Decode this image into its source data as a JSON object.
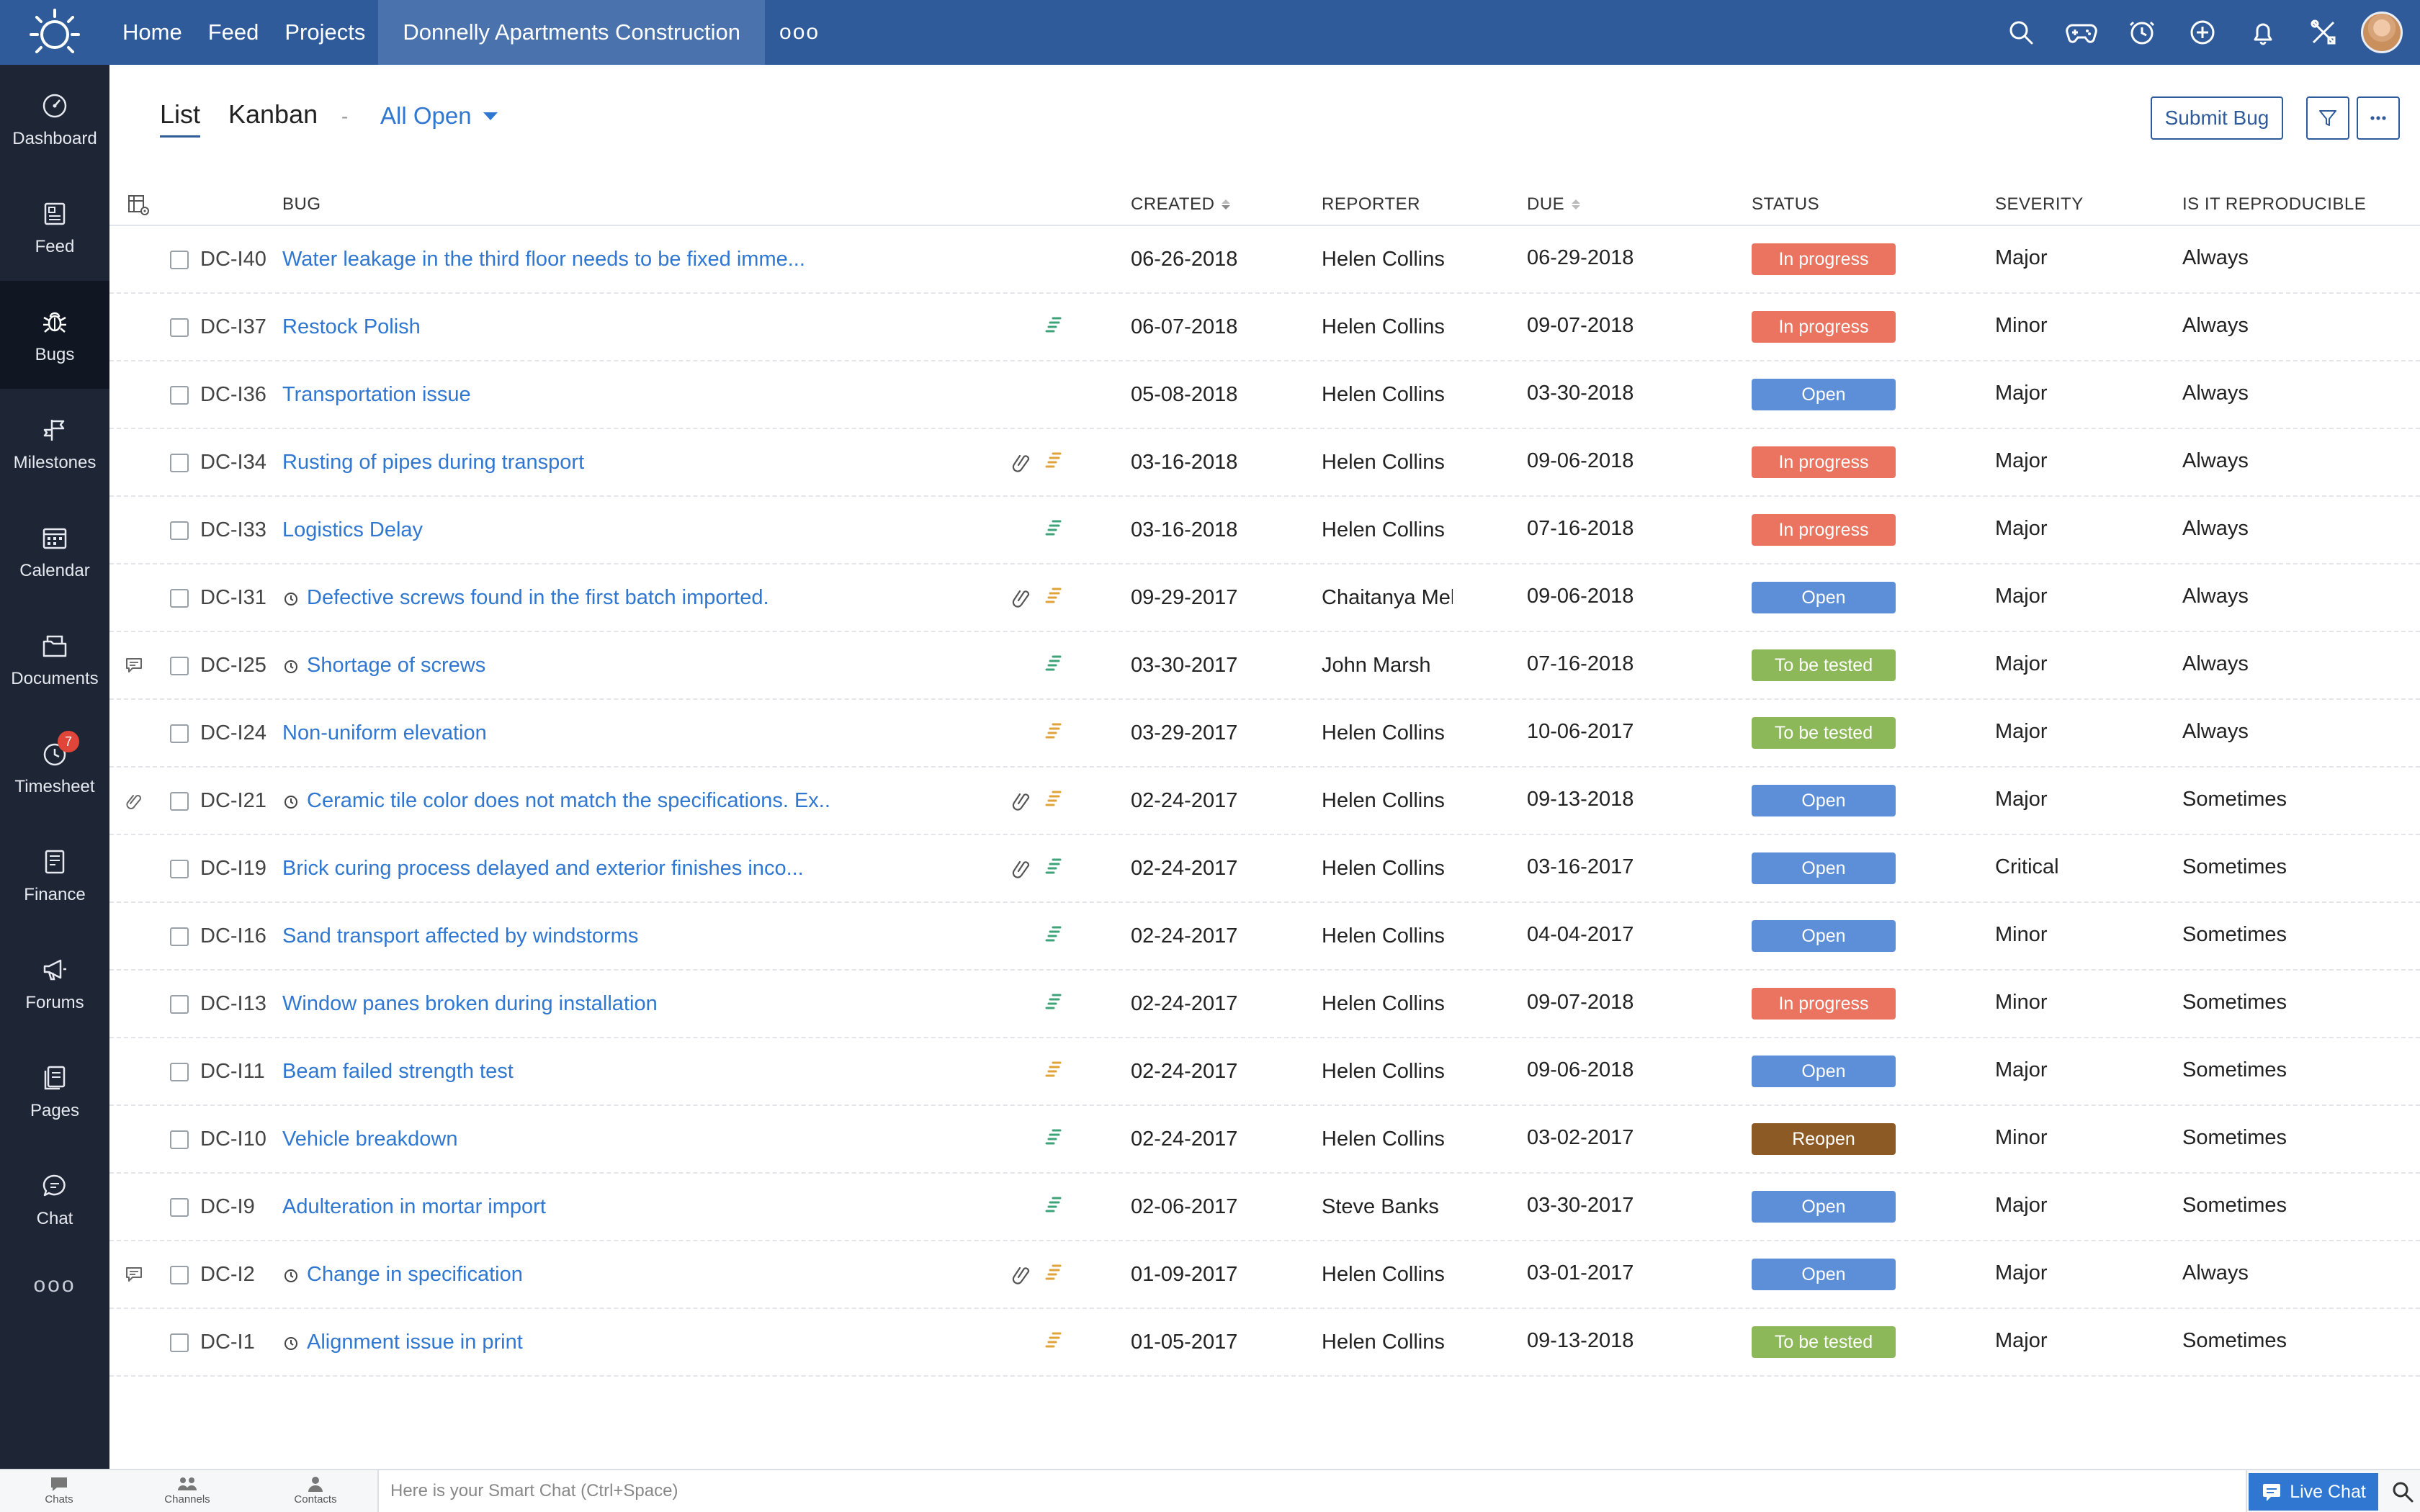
{
  "topbar": {
    "nav": [
      "Home",
      "Feed",
      "Projects"
    ],
    "project": "Donnelly Apartments Construction",
    "more": "ooo",
    "icons": [
      "search-icon",
      "gamepad-icon",
      "clock-icon",
      "plus-circle-icon",
      "bell-icon",
      "tools-icon"
    ]
  },
  "sidebar": {
    "items": [
      {
        "label": "Dashboard",
        "icon": "dashboard-icon"
      },
      {
        "label": "Feed",
        "icon": "feed-icon"
      },
      {
        "label": "Bugs",
        "icon": "bug-icon"
      },
      {
        "label": "Milestones",
        "icon": "milestone-icon"
      },
      {
        "label": "Calendar",
        "icon": "calendar-icon"
      },
      {
        "label": "Documents",
        "icon": "documents-icon"
      },
      {
        "label": "Timesheet",
        "icon": "timesheet-icon",
        "badge": "7"
      },
      {
        "label": "Finance",
        "icon": "finance-icon"
      },
      {
        "label": "Forums",
        "icon": "forums-icon"
      },
      {
        "label": "Pages",
        "icon": "pages-icon"
      },
      {
        "label": "Chat",
        "icon": "chat-icon"
      }
    ],
    "more": "ooo"
  },
  "view": {
    "tab_list": "List",
    "tab_kanban": "Kanban",
    "separator": "-",
    "filter": "All Open",
    "submit": "Submit Bug"
  },
  "table": {
    "headers": {
      "bug": "BUG",
      "created": "CREATED",
      "reporter": "REPORTER",
      "due": "DUE",
      "status": "STATUS",
      "severity": "SEVERITY",
      "reproducible": "IS IT REPRODUCIBLE"
    },
    "rows": [
      {
        "id": "DC-I40",
        "title": "Water leakage in the third floor needs to be fixed imme...",
        "clock": false,
        "link": false,
        "priority": "",
        "created": "06-26-2018",
        "reporter": "Helen Collins",
        "due": "06-29-2018",
        "status": "In progress",
        "severity": "Major",
        "reproducible": "Always",
        "left": ""
      },
      {
        "id": "DC-I37",
        "title": "Restock Polish",
        "clock": false,
        "link": false,
        "priority": "green",
        "created": "06-07-2018",
        "reporter": "Helen Collins",
        "due": "09-07-2018",
        "status": "In progress",
        "severity": "Minor",
        "reproducible": "Always",
        "left": ""
      },
      {
        "id": "DC-I36",
        "title": "Transportation issue",
        "clock": false,
        "link": false,
        "priority": "",
        "created": "05-08-2018",
        "reporter": "Helen Collins",
        "due": "03-30-2018",
        "status": "Open",
        "severity": "Major",
        "reproducible": "Always",
        "left": ""
      },
      {
        "id": "DC-I34",
        "title": "Rusting of pipes during transport",
        "clock": false,
        "link": true,
        "priority": "orange",
        "created": "03-16-2018",
        "reporter": "Helen Collins",
        "due": "09-06-2018",
        "status": "In progress",
        "severity": "Major",
        "reproducible": "Always",
        "left": ""
      },
      {
        "id": "DC-I33",
        "title": "Logistics Delay",
        "clock": false,
        "link": false,
        "priority": "green",
        "created": "03-16-2018",
        "reporter": "Helen Collins",
        "due": "07-16-2018",
        "status": "In progress",
        "severity": "Major",
        "reproducible": "Always",
        "left": ""
      },
      {
        "id": "DC-I31",
        "title": "Defective screws found in the first batch imported.",
        "clock": true,
        "link": true,
        "priority": "orange",
        "created": "09-29-2017",
        "reporter": "Chaitanya Mell",
        "due": "09-06-2018",
        "status": "Open",
        "severity": "Major",
        "reproducible": "Always",
        "left": ""
      },
      {
        "id": "DC-I25",
        "title": "Shortage of screws",
        "clock": true,
        "link": false,
        "priority": "green",
        "created": "03-30-2017",
        "reporter": "John Marsh",
        "due": "07-16-2018",
        "status": "To be tested",
        "severity": "Major",
        "reproducible": "Always",
        "left": "comment"
      },
      {
        "id": "DC-I24",
        "title": "Non-uniform elevation",
        "clock": false,
        "link": false,
        "priority": "orange",
        "created": "03-29-2017",
        "reporter": "Helen Collins",
        "due": "10-06-2017",
        "status": "To be tested",
        "severity": "Major",
        "reproducible": "Always",
        "left": ""
      },
      {
        "id": "DC-I21",
        "title": "Ceramic tile color does not match the specifications. Ex...",
        "clock": true,
        "link": true,
        "priority": "orange",
        "created": "02-24-2017",
        "reporter": "Helen Collins",
        "due": "09-13-2018",
        "status": "Open",
        "severity": "Major",
        "reproducible": "Sometimes",
        "left": "attachment"
      },
      {
        "id": "DC-I19",
        "title": "Brick curing process delayed and exterior finishes inco...",
        "clock": false,
        "link": true,
        "priority": "green",
        "created": "02-24-2017",
        "reporter": "Helen Collins",
        "due": "03-16-2017",
        "status": "Open",
        "severity": "Critical",
        "reproducible": "Sometimes",
        "left": ""
      },
      {
        "id": "DC-I16",
        "title": "Sand transport affected by windstorms",
        "clock": false,
        "link": false,
        "priority": "green",
        "created": "02-24-2017",
        "reporter": "Helen Collins",
        "due": "04-04-2017",
        "status": "Open",
        "severity": "Minor",
        "reproducible": "Sometimes",
        "left": ""
      },
      {
        "id": "DC-I13",
        "title": "Window panes broken during installation",
        "clock": false,
        "link": false,
        "priority": "green",
        "created": "02-24-2017",
        "reporter": "Helen Collins",
        "due": "09-07-2018",
        "status": "In progress",
        "severity": "Minor",
        "reproducible": "Sometimes",
        "left": ""
      },
      {
        "id": "DC-I11",
        "title": "Beam failed strength test",
        "clock": false,
        "link": false,
        "priority": "orange",
        "created": "02-24-2017",
        "reporter": "Helen Collins",
        "due": "09-06-2018",
        "status": "Open",
        "severity": "Major",
        "reproducible": "Sometimes",
        "left": ""
      },
      {
        "id": "DC-I10",
        "title": "Vehicle breakdown",
        "clock": false,
        "link": false,
        "priority": "green",
        "created": "02-24-2017",
        "reporter": "Helen Collins",
        "due": "03-02-2017",
        "status": "Reopen",
        "severity": "Minor",
        "reproducible": "Sometimes",
        "left": ""
      },
      {
        "id": "DC-I9",
        "title": "Adulteration in mortar import",
        "clock": false,
        "link": false,
        "priority": "green",
        "created": "02-06-2017",
        "reporter": "Steve Banks",
        "due": "03-30-2017",
        "status": "Open",
        "severity": "Major",
        "reproducible": "Sometimes",
        "left": ""
      },
      {
        "id": "DC-I2",
        "title": "Change in specification",
        "clock": true,
        "link": true,
        "priority": "orange",
        "created": "01-09-2017",
        "reporter": "Helen Collins",
        "due": "03-01-2017",
        "status": "Open",
        "severity": "Major",
        "reproducible": "Always",
        "left": "comment"
      },
      {
        "id": "DC-I1",
        "title": "Alignment issue in print",
        "clock": true,
        "link": false,
        "priority": "orange",
        "created": "01-05-2017",
        "reporter": "Helen Collins",
        "due": "09-13-2018",
        "status": "To be tested",
        "severity": "Major",
        "reproducible": "Sometimes",
        "left": ""
      }
    ]
  },
  "colors": {
    "topbar": "#2f5b9a",
    "sidebar": "#1e2535",
    "link": "#2f77d0",
    "in_progress": "#ea7460",
    "open": "#5d8fd8",
    "to_be_tested": "#8db85a",
    "reopen": "#8c5b25",
    "priority_green": "#3fa37a",
    "priority_orange": "#e0a33a"
  },
  "bottombar": {
    "chats": "Chats",
    "channels": "Channels",
    "contacts": "Contacts",
    "smart_chat_placeholder": "Here is your Smart Chat (Ctrl+Space)",
    "live_chat": "Live Chat"
  }
}
